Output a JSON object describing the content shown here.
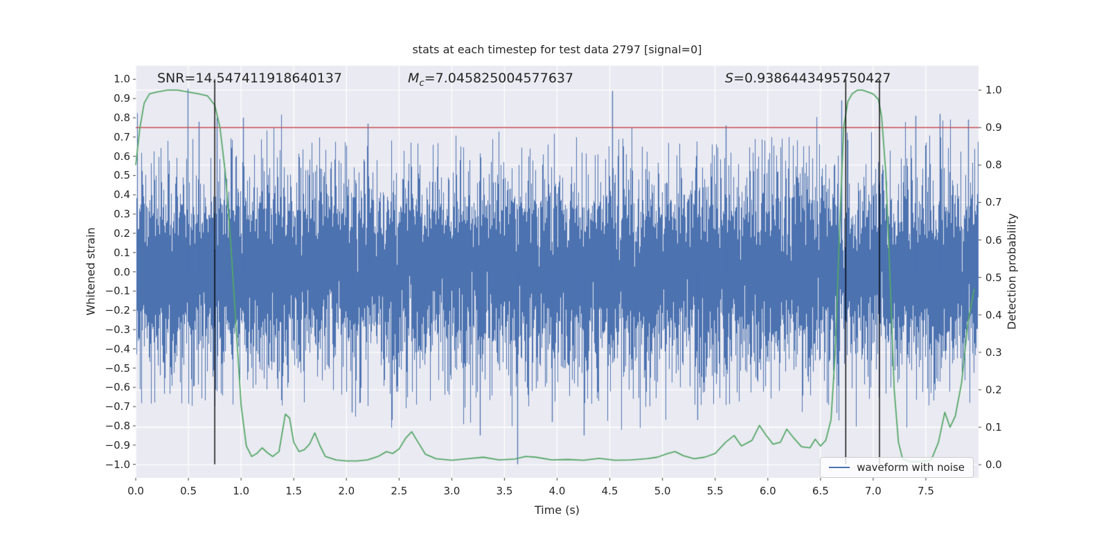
{
  "title": "stats at each timestep for test data 2797 [signal=0]",
  "annotations": {
    "snr": "SNR=14.547411918640137",
    "mc": {
      "base": "M",
      "sub": "c",
      "value": "=7.045825004577637"
    },
    "s": {
      "base": "S",
      "value": "=0.9386443495750427"
    }
  },
  "chart_data": {
    "type": "line",
    "title": "stats at each timestep for test data 2797 [signal=0]",
    "xlabel": "Time (s)",
    "ylabel_left": "Whitened strain",
    "ylabel_right": "Detection probability",
    "background": "#EAEAF2",
    "grid_color": "#FFFFFF",
    "legend_position": "lower right",
    "xlim": [
      0,
      8
    ],
    "ylim_left": [
      -1.07,
      1.07
    ],
    "ylim_right": [
      -0.035,
      1.065
    ],
    "x_ticks": {
      "values": [
        0,
        0.5,
        1,
        1.5,
        2,
        2.5,
        3,
        3.5,
        4,
        4.5,
        5,
        5.5,
        6,
        6.5,
        7,
        7.5
      ],
      "labels": [
        "0.0",
        "0.5",
        "1.0",
        "1.5",
        "2.0",
        "2.5",
        "3.0",
        "3.5",
        "4.0",
        "4.5",
        "5.0",
        "5.5",
        "6.0",
        "6.5",
        "7.0",
        "7.5"
      ]
    },
    "y_ticks_left": {
      "values": [
        1.0,
        0.9,
        0.8,
        0.7,
        0.6,
        0.5,
        0.4,
        0.3,
        0.2,
        0.1,
        0.0,
        -0.1,
        -0.2,
        -0.3,
        -0.4,
        -0.5,
        -0.6,
        -0.7,
        -0.8,
        -0.9,
        -1.0
      ],
      "labels": [
        "1.0",
        "0.9",
        "0.8",
        "0.7",
        "0.6",
        "0.5",
        "0.4",
        "0.3",
        "0.2",
        "0.1",
        "0.0",
        "−0.1",
        "−0.2",
        "−0.3",
        "−0.4",
        "−0.5",
        "−0.6",
        "−0.7",
        "−0.8",
        "−0.9",
        "−1.0"
      ]
    },
    "y_ticks_right": {
      "values": [
        1.0,
        0.9,
        0.8,
        0.7,
        0.6,
        0.5,
        0.4,
        0.3,
        0.2,
        0.1,
        0.0
      ],
      "labels": [
        "1.0",
        "0.9",
        "0.8",
        "0.7",
        "0.6",
        "0.5",
        "0.4",
        "0.3",
        "0.2",
        "0.1",
        "0.0"
      ]
    },
    "threshold": {
      "axis": "right",
      "value": 0.9,
      "color": "#C44E52"
    },
    "vlines": {
      "xs": [
        0.75,
        6.74,
        7.06
      ],
      "color": "#000000"
    },
    "series": [
      {
        "name": "waveform with noise",
        "axis": "left",
        "color": "#4C72B0",
        "kind": "noise",
        "seed": 2797,
        "sigma": 0.21,
        "samples_per_column": 10,
        "notable_extremes": [
          [
            0.49,
            0.95
          ],
          [
            0.6,
            0.78
          ],
          [
            0.77,
            0.8
          ],
          [
            1.02,
            0.8
          ],
          [
            2.05,
            -0.73
          ],
          [
            2.2,
            0.77
          ],
          [
            3.27,
            -0.85
          ],
          [
            3.62,
            -1.0
          ],
          [
            3.95,
            -0.78
          ],
          [
            4.25,
            -0.85
          ],
          [
            4.52,
            0.94
          ],
          [
            5.33,
            -0.77
          ],
          [
            5.6,
            0.76
          ],
          [
            6.7,
            0.89
          ],
          [
            7.4,
            0.81
          ],
          [
            7.63,
            0.82
          ],
          [
            7.9,
            0.79
          ]
        ]
      },
      {
        "name": "detection probability",
        "axis": "right",
        "color": "#55A868",
        "kind": "line",
        "points": [
          [
            0.0,
            0.8
          ],
          [
            0.04,
            0.9
          ],
          [
            0.08,
            0.965
          ],
          [
            0.13,
            0.99
          ],
          [
            0.2,
            0.995
          ],
          [
            0.3,
            1.0
          ],
          [
            0.4,
            1.0
          ],
          [
            0.5,
            0.995
          ],
          [
            0.6,
            0.99
          ],
          [
            0.68,
            0.985
          ],
          [
            0.75,
            0.96
          ],
          [
            0.8,
            0.9
          ],
          [
            0.85,
            0.78
          ],
          [
            0.9,
            0.6
          ],
          [
            0.95,
            0.38
          ],
          [
            1.0,
            0.16
          ],
          [
            1.05,
            0.05
          ],
          [
            1.1,
            0.022
          ],
          [
            1.15,
            0.03
          ],
          [
            1.2,
            0.045
          ],
          [
            1.25,
            0.032
          ],
          [
            1.3,
            0.022
          ],
          [
            1.36,
            0.035
          ],
          [
            1.42,
            0.135
          ],
          [
            1.46,
            0.125
          ],
          [
            1.5,
            0.06
          ],
          [
            1.55,
            0.035
          ],
          [
            1.6,
            0.04
          ],
          [
            1.65,
            0.055
          ],
          [
            1.7,
            0.085
          ],
          [
            1.75,
            0.05
          ],
          [
            1.8,
            0.022
          ],
          [
            1.9,
            0.013
          ],
          [
            2.0,
            0.01
          ],
          [
            2.1,
            0.01
          ],
          [
            2.2,
            0.013
          ],
          [
            2.3,
            0.022
          ],
          [
            2.38,
            0.035
          ],
          [
            2.44,
            0.03
          ],
          [
            2.5,
            0.042
          ],
          [
            2.56,
            0.07
          ],
          [
            2.62,
            0.088
          ],
          [
            2.68,
            0.06
          ],
          [
            2.75,
            0.028
          ],
          [
            2.85,
            0.016
          ],
          [
            3.0,
            0.012
          ],
          [
            3.15,
            0.016
          ],
          [
            3.3,
            0.02
          ],
          [
            3.45,
            0.013
          ],
          [
            3.6,
            0.015
          ],
          [
            3.7,
            0.022
          ],
          [
            3.8,
            0.02
          ],
          [
            3.95,
            0.013
          ],
          [
            4.1,
            0.014
          ],
          [
            4.25,
            0.012
          ],
          [
            4.4,
            0.017
          ],
          [
            4.55,
            0.012
          ],
          [
            4.7,
            0.013
          ],
          [
            4.85,
            0.016
          ],
          [
            4.95,
            0.02
          ],
          [
            5.05,
            0.03
          ],
          [
            5.12,
            0.035
          ],
          [
            5.2,
            0.024
          ],
          [
            5.3,
            0.016
          ],
          [
            5.4,
            0.02
          ],
          [
            5.5,
            0.03
          ],
          [
            5.6,
            0.06
          ],
          [
            5.68,
            0.078
          ],
          [
            5.75,
            0.05
          ],
          [
            5.85,
            0.065
          ],
          [
            5.92,
            0.105
          ],
          [
            5.98,
            0.08
          ],
          [
            6.05,
            0.055
          ],
          [
            6.12,
            0.06
          ],
          [
            6.18,
            0.095
          ],
          [
            6.25,
            0.07
          ],
          [
            6.32,
            0.048
          ],
          [
            6.4,
            0.045
          ],
          [
            6.45,
            0.068
          ],
          [
            6.5,
            0.05
          ],
          [
            6.55,
            0.065
          ],
          [
            6.6,
            0.12
          ],
          [
            6.64,
            0.3
          ],
          [
            6.68,
            0.62
          ],
          [
            6.72,
            0.9
          ],
          [
            6.76,
            0.97
          ],
          [
            6.8,
            0.99
          ],
          [
            6.85,
            1.0
          ],
          [
            6.9,
            1.0
          ],
          [
            6.95,
            0.995
          ],
          [
            7.0,
            0.99
          ],
          [
            7.05,
            0.975
          ],
          [
            7.08,
            0.93
          ],
          [
            7.12,
            0.78
          ],
          [
            7.16,
            0.5
          ],
          [
            7.2,
            0.2
          ],
          [
            7.24,
            0.06
          ],
          [
            7.28,
            0.015
          ],
          [
            7.35,
            0.008
          ],
          [
            7.45,
            0.008
          ],
          [
            7.55,
            0.012
          ],
          [
            7.62,
            0.06
          ],
          [
            7.68,
            0.14
          ],
          [
            7.73,
            0.1
          ],
          [
            7.78,
            0.13
          ],
          [
            7.84,
            0.22
          ],
          [
            7.9,
            0.38
          ],
          [
            7.96,
            0.47
          ]
        ]
      }
    ]
  }
}
